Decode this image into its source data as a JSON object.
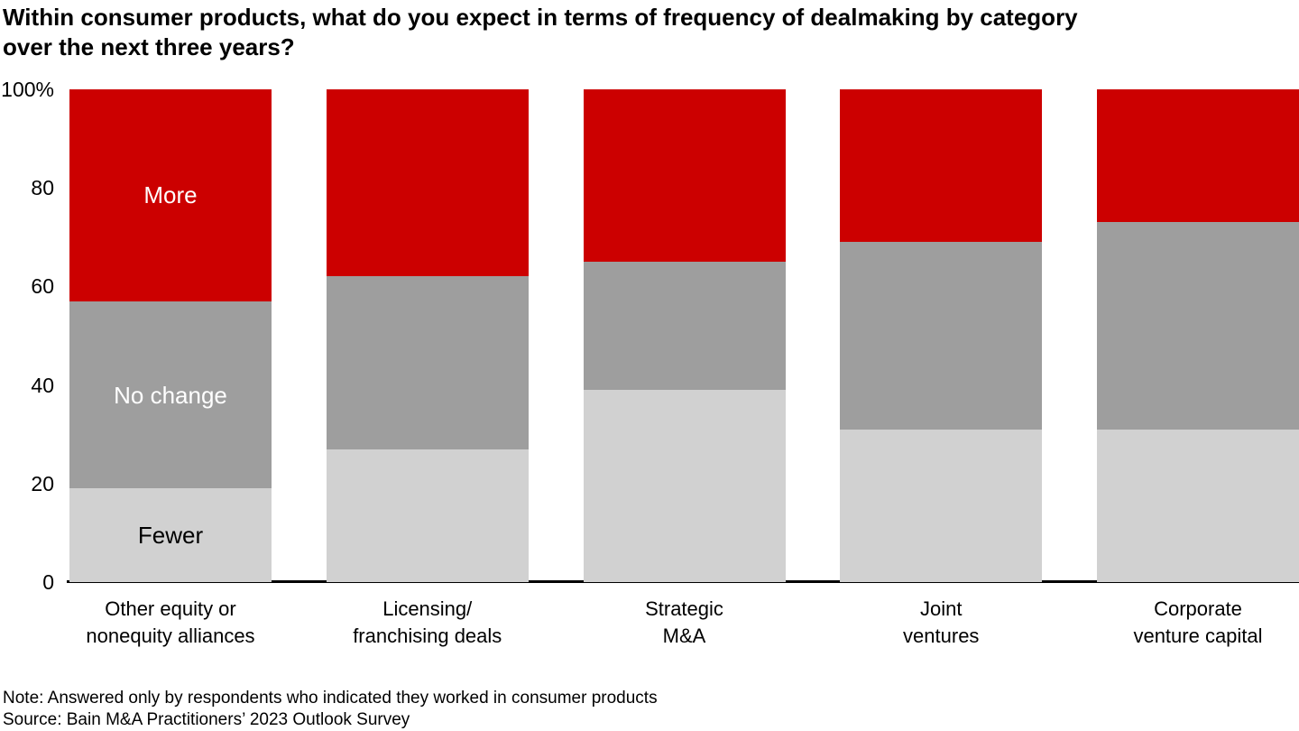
{
  "chart_data": {
    "type": "bar",
    "subtype": "stacked-100-percent",
    "title": "Within consumer products, what do you expect in terms of frequency of dealmaking by category over the next three years?",
    "title_lines": [
      "Within consumer products, what do you expect in terms of frequency of dealmaking by category",
      "over the next three years?"
    ],
    "categories": [
      "Other equity or nonequity alliances",
      "Licensing/franchising deals",
      "Strategic M&A",
      "Joint ventures",
      "Corporate venture capital"
    ],
    "category_label_lines": [
      [
        "Other equity or",
        "nonequity alliances"
      ],
      [
        "Licensing/",
        "franchising deals"
      ],
      [
        "Strategic",
        "M&A"
      ],
      [
        "Joint",
        "ventures"
      ],
      [
        "Corporate",
        "venture capital"
      ]
    ],
    "series": [
      {
        "name": "Fewer",
        "values": [
          19,
          27,
          39,
          31,
          31
        ],
        "color": "#D1D1D1",
        "label_color": "#000000"
      },
      {
        "name": "No change",
        "values": [
          38,
          35,
          26,
          38,
          42
        ],
        "color": "#9E9E9E",
        "label_color": "#FFFFFF"
      },
      {
        "name": "More",
        "values": [
          43,
          38,
          35,
          31,
          27
        ],
        "color": "#CC0000",
        "label_color": "#FFFFFF"
      }
    ],
    "segment_labels_shown_on_first_bar_only": [
      "Fewer",
      "No change",
      "More"
    ],
    "y_axis": {
      "min": 0,
      "max": 100,
      "unit": "%",
      "ticks": [
        {
          "value": 0,
          "label": "0"
        },
        {
          "value": 20,
          "label": "20"
        },
        {
          "value": 40,
          "label": "40"
        },
        {
          "value": 60,
          "label": "60"
        },
        {
          "value": 80,
          "label": "80"
        },
        {
          "value": 100,
          "label": "100%"
        }
      ]
    },
    "legend": "none",
    "grid": "off",
    "note": "Note: Answered only by respondents who indicated they worked in consumer products",
    "source": "Source: Bain M&A Practitioners’ 2023 Outlook Survey"
  }
}
